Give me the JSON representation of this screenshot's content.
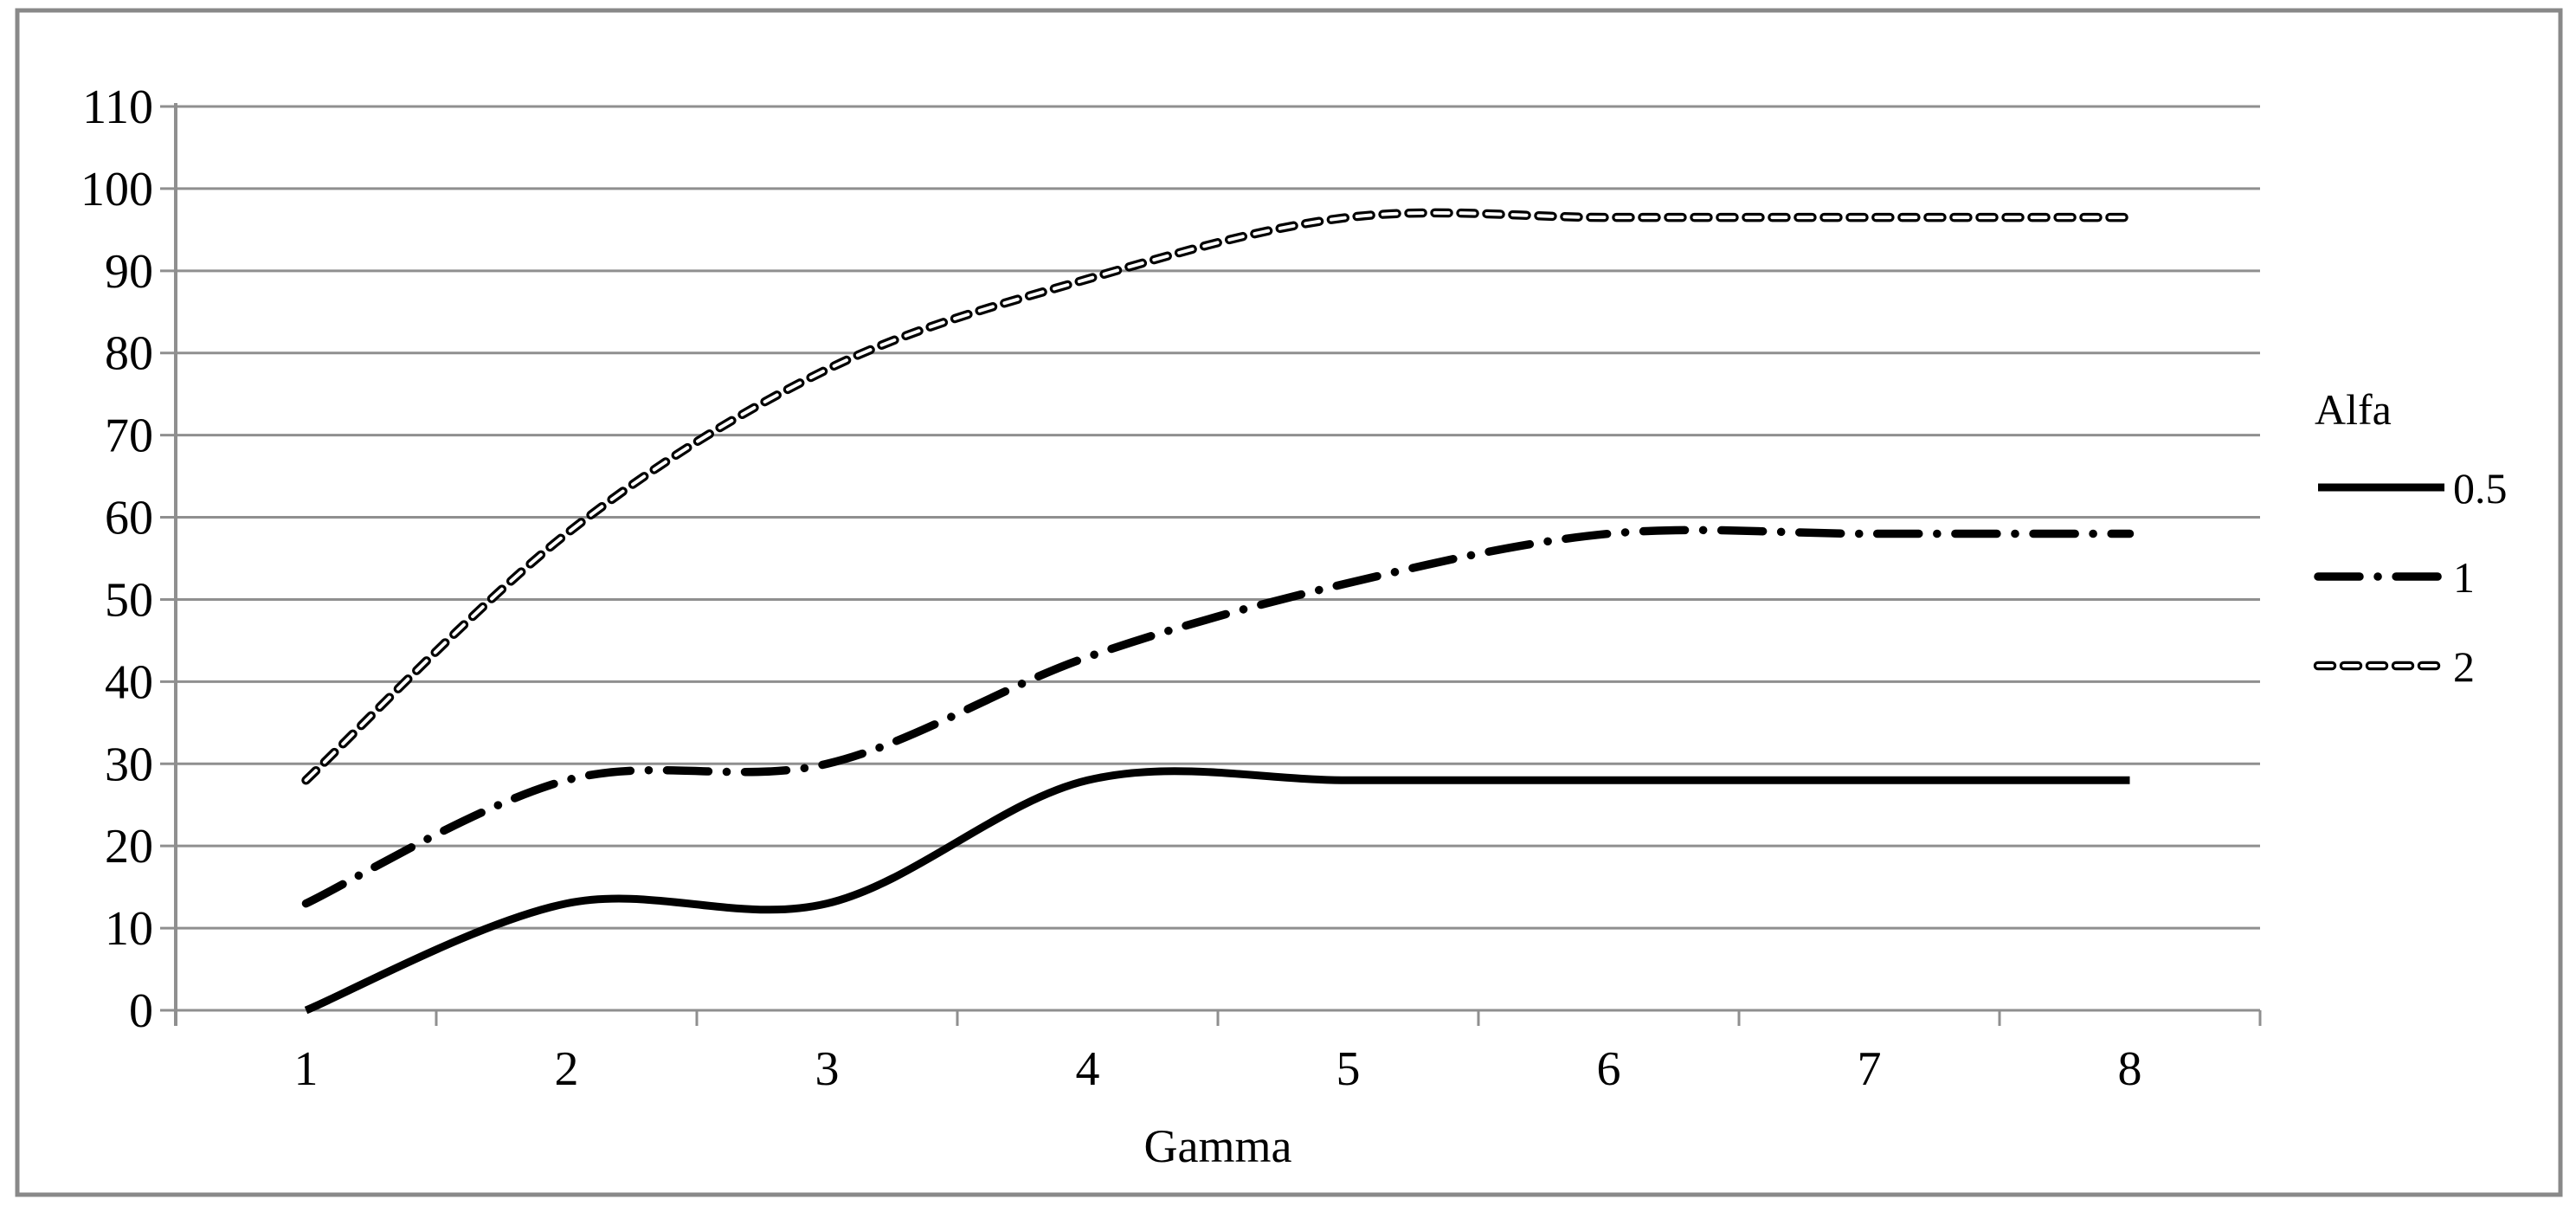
{
  "chart_data": {
    "type": "line",
    "title": "",
    "xlabel": "Gamma",
    "ylabel": "",
    "categories": [
      "1",
      "2",
      "3",
      "4",
      "5",
      "6",
      "7",
      "8"
    ],
    "x_values": [
      1,
      2,
      3,
      4,
      5,
      6,
      7,
      8
    ],
    "series": [
      {
        "name": "0.5",
        "style": "solid",
        "values": [
          0,
          13,
          13,
          28,
          28,
          28,
          28,
          28
        ]
      },
      {
        "name": "1",
        "style": "dash-dot",
        "values": [
          13,
          28,
          30,
          43,
          52,
          58,
          58,
          58
        ]
      },
      {
        "name": "2",
        "style": "dashed-hollow",
        "values": [
          28,
          58,
          78,
          89,
          96.5,
          96.5,
          96.5,
          96.5
        ]
      }
    ],
    "legend": {
      "title": "Alfa",
      "entries": [
        "0.5",
        "1",
        "2"
      ],
      "position": "right"
    },
    "ylim": [
      0,
      110
    ],
    "ytick_step": 10,
    "y_tick_labels": [
      "0",
      "10",
      "20",
      "30",
      "40",
      "50",
      "60",
      "70",
      "80",
      "90",
      "100",
      "110"
    ],
    "grid": true,
    "colors": {
      "series_line": "#000000",
      "gridline": "#8f8f8f",
      "axis": "#8f8f8f",
      "border": "#898989",
      "text": "#000000",
      "background": "#ffffff"
    }
  }
}
